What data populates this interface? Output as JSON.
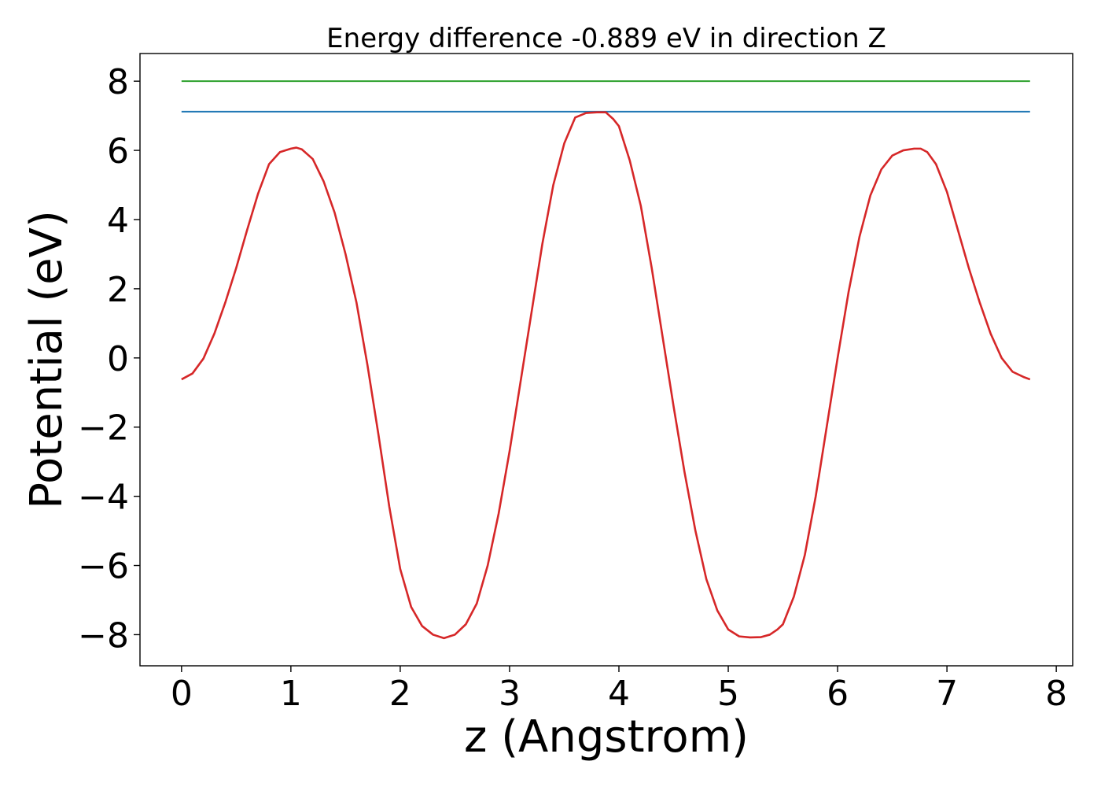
{
  "chart_data": {
    "type": "line",
    "title": "Energy difference -0.889 eV in direction Z",
    "xlabel": "z (Angstrom)",
    "ylabel": "Potential (eV)",
    "xlim": [
      -0.38,
      8.15
    ],
    "ylim": [
      -8.9,
      8.8
    ],
    "xticks": [
      0,
      1,
      2,
      3,
      4,
      5,
      6,
      7,
      8
    ],
    "xtick_labels": [
      "0",
      "1",
      "2",
      "3",
      "4",
      "5",
      "6",
      "7",
      "8"
    ],
    "yticks": [
      -8,
      -6,
      -4,
      -2,
      0,
      2,
      4,
      6,
      8
    ],
    "ytick_labels": [
      "−8",
      "−6",
      "−4",
      "−2",
      "0",
      "2",
      "4",
      "6",
      "8"
    ],
    "grid": false,
    "legend": "none",
    "series": [
      {
        "color": "#2ca02c",
        "x": [
          0.0,
          7.76
        ],
        "y": [
          8.0,
          8.0
        ]
      },
      {
        "color": "#1f77b4",
        "x": [
          0.0,
          7.76
        ],
        "y": [
          7.12,
          7.12
        ]
      },
      {
        "color": "#d62728",
        "x": [
          0.0,
          0.1,
          0.2,
          0.3,
          0.4,
          0.5,
          0.6,
          0.7,
          0.8,
          0.9,
          1.0,
          1.05,
          1.1,
          1.2,
          1.3,
          1.4,
          1.5,
          1.6,
          1.7,
          1.8,
          1.9,
          2.0,
          2.1,
          2.2,
          2.3,
          2.4,
          2.45,
          2.5,
          2.6,
          2.7,
          2.8,
          2.9,
          3.0,
          3.1,
          3.2,
          3.3,
          3.4,
          3.5,
          3.6,
          3.7,
          3.8,
          3.88,
          3.95,
          4.0,
          4.1,
          4.2,
          4.3,
          4.4,
          4.5,
          4.6,
          4.7,
          4.8,
          4.9,
          5.0,
          5.1,
          5.2,
          5.3,
          5.38,
          5.45,
          5.5,
          5.6,
          5.7,
          5.8,
          5.9,
          6.0,
          6.1,
          6.2,
          6.3,
          6.4,
          6.5,
          6.6,
          6.7,
          6.76,
          6.82,
          6.9,
          7.0,
          7.1,
          7.2,
          7.3,
          7.4,
          7.5,
          7.6,
          7.7,
          7.76
        ],
        "y": [
          -0.62,
          -0.45,
          -0.02,
          0.7,
          1.6,
          2.6,
          3.7,
          4.75,
          5.6,
          5.95,
          6.05,
          6.08,
          6.03,
          5.75,
          5.1,
          4.2,
          3.0,
          1.6,
          -0.2,
          -2.2,
          -4.3,
          -6.1,
          -7.2,
          -7.75,
          -8.0,
          -8.1,
          -8.05,
          -8.0,
          -7.7,
          -7.1,
          -6.0,
          -4.5,
          -2.7,
          -0.7,
          1.3,
          3.3,
          5.0,
          6.2,
          6.95,
          7.08,
          7.1,
          7.1,
          6.9,
          6.7,
          5.7,
          4.4,
          2.6,
          0.6,
          -1.4,
          -3.3,
          -5.0,
          -6.4,
          -7.3,
          -7.85,
          -8.05,
          -8.08,
          -8.07,
          -8.0,
          -7.85,
          -7.7,
          -6.9,
          -5.7,
          -4.0,
          -2.0,
          0.0,
          1.9,
          3.5,
          4.7,
          5.45,
          5.85,
          6.0,
          6.05,
          6.05,
          5.95,
          5.6,
          4.8,
          3.7,
          2.6,
          1.6,
          0.7,
          0.0,
          -0.4,
          -0.55,
          -0.62
        ]
      }
    ]
  }
}
